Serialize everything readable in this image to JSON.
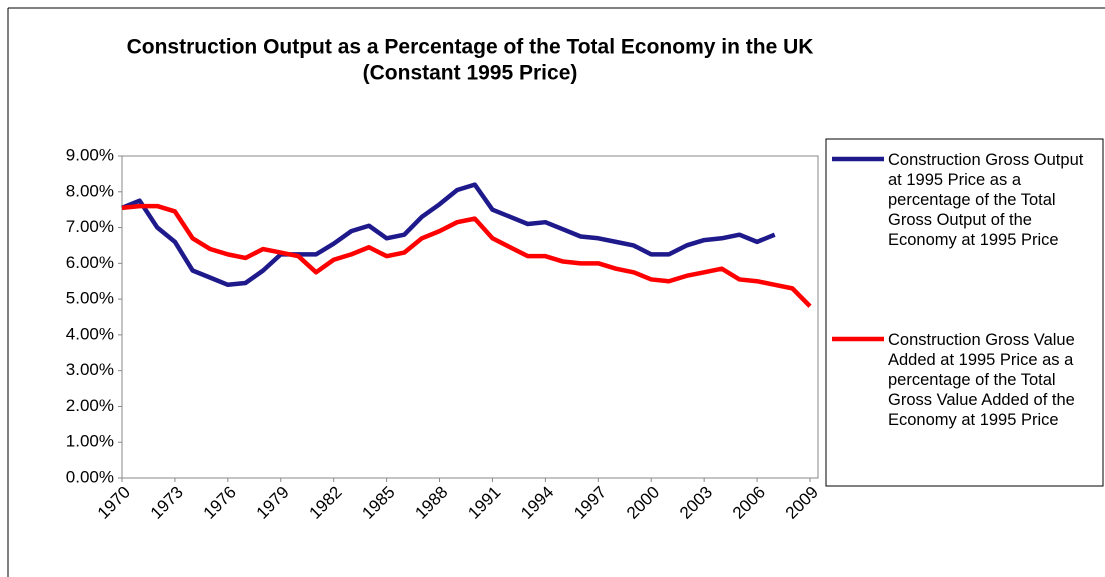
{
  "chart_data": {
    "type": "line",
    "title": "Construction Output as a Percentage of the Total Economy in the UK",
    "subtitle": "(Constant 1995 Price)",
    "x": [
      1970,
      1971,
      1972,
      1973,
      1974,
      1975,
      1976,
      1977,
      1978,
      1979,
      1980,
      1981,
      1982,
      1983,
      1984,
      1985,
      1986,
      1987,
      1988,
      1989,
      1990,
      1991,
      1992,
      1993,
      1994,
      1995,
      1996,
      1997,
      1998,
      1999,
      2000,
      2001,
      2002,
      2003,
      2004,
      2005,
      2006,
      2007,
      2008,
      2009
    ],
    "series": [
      {
        "name": "Construction Gross Output at 1995 Price as a percentage of the Total Gross Output of the Economy at 1995 Price",
        "color": "#1f1a8c",
        "values": [
          7.55,
          7.75,
          7.0,
          6.6,
          5.8,
          5.6,
          5.4,
          5.45,
          5.8,
          6.25,
          6.25,
          6.25,
          6.55,
          6.9,
          7.05,
          6.7,
          6.8,
          7.3,
          7.65,
          8.05,
          8.2,
          7.5,
          7.3,
          7.1,
          7.15,
          6.95,
          6.75,
          6.7,
          6.6,
          6.5,
          6.25,
          6.25,
          6.5,
          6.65,
          6.7,
          6.8,
          6.6,
          6.8,
          null,
          null
        ]
      },
      {
        "name": "Construction Gross Value Added at 1995 Price as a percentage of the Total Gross Value Added of the Economy at 1995 Price",
        "color": "#ff0000",
        "values": [
          7.55,
          7.6,
          7.6,
          7.45,
          6.7,
          6.4,
          6.25,
          6.15,
          6.4,
          6.3,
          6.2,
          5.75,
          6.1,
          6.25,
          6.45,
          6.2,
          6.3,
          6.7,
          6.9,
          7.15,
          7.25,
          6.7,
          6.45,
          6.2,
          6.2,
          6.05,
          6.0,
          6.0,
          5.85,
          5.75,
          5.55,
          5.5,
          5.65,
          5.75,
          5.85,
          5.55,
          5.5,
          5.4,
          5.3,
          4.8
        ]
      }
    ],
    "xlim": [
      1970,
      2009
    ],
    "xticks": [
      1970,
      1973,
      1976,
      1979,
      1982,
      1985,
      1988,
      1991,
      1994,
      1997,
      2000,
      2003,
      2006,
      2009
    ],
    "ylim": [
      0,
      9
    ],
    "yticks": [
      {
        "value": 0,
        "label": "0.00%"
      },
      {
        "value": 1,
        "label": "1.00%"
      },
      {
        "value": 2,
        "label": "2.00%"
      },
      {
        "value": 3,
        "label": "3.00%"
      },
      {
        "value": 4,
        "label": "4.00%"
      },
      {
        "value": 5,
        "label": "5.00%"
      },
      {
        "value": 6,
        "label": "6.00%"
      },
      {
        "value": 7,
        "label": "7.00%"
      },
      {
        "value": 8,
        "label": "8.00%"
      },
      {
        "value": 9,
        "label": "9.00%"
      }
    ],
    "grid": false,
    "legend": "right"
  }
}
